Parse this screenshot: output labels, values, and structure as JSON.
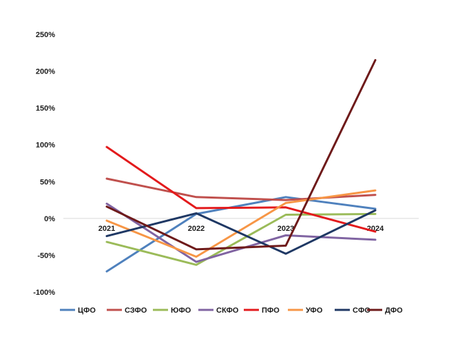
{
  "chart_data": {
    "type": "line",
    "title": "",
    "xlabel": "",
    "ylabel": "",
    "categories": [
      "2021",
      "2022",
      "2023",
      "2024"
    ],
    "y_ticks": [
      "250%",
      "200%",
      "150%",
      "100%",
      "50%",
      "0%",
      "-50%",
      "-100%"
    ],
    "ylim": [
      -100,
      250
    ],
    "y_unit": "%",
    "grid": false,
    "legend_position": "bottom",
    "series": [
      {
        "name": "ЦФО",
        "color": "#4f81bd",
        "values": [
          -72,
          6,
          29,
          13
        ]
      },
      {
        "name": "СЗФО",
        "color": "#c0504d",
        "values": [
          54,
          29,
          25,
          32
        ]
      },
      {
        "name": "ЮФО",
        "color": "#9bbb59",
        "values": [
          -32,
          -63,
          5,
          6
        ]
      },
      {
        "name": "СКФО",
        "color": "#8064a2",
        "values": [
          20,
          -59,
          -23,
          -29
        ]
      },
      {
        "name": "ПФО",
        "color": "#e31a1c",
        "values": [
          97,
          14,
          15,
          -18
        ]
      },
      {
        "name": "УФО",
        "color": "#f79646",
        "values": [
          -3,
          -52,
          21,
          38
        ]
      },
      {
        "name": "СФО",
        "color": "#1f3864",
        "values": [
          -24,
          7,
          -48,
          11
        ]
      },
      {
        "name": "ДФО",
        "color": "#6e1a1a",
        "values": [
          16,
          -42,
          -37,
          215
        ]
      }
    ]
  }
}
